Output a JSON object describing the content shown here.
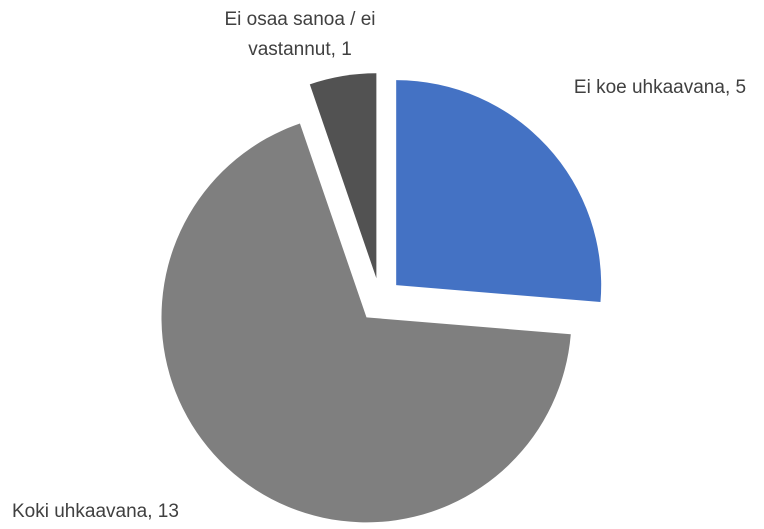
{
  "chart_data": {
    "type": "pie",
    "categories": [
      "Ei koe uhkaavana",
      "Koki uhkaavana",
      "Ei osaa sanoa / ei vastannut"
    ],
    "values": [
      5,
      13,
      1
    ],
    "colors": [
      "#4472c4",
      "#7f7f7f",
      "#525252"
    ]
  }
}
